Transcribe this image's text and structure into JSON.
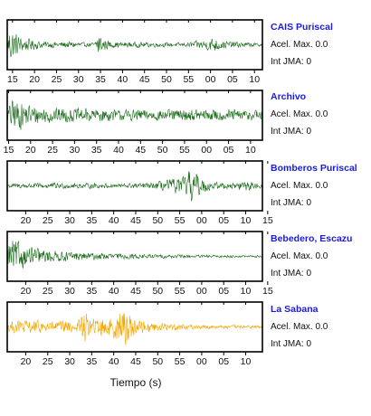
{
  "chart_data": {
    "type": "line",
    "xlabel": "Tiempo (s)",
    "stations": [
      {
        "name": "CAIS Puriscal",
        "acel_label": "Acel. Max. 0.0",
        "int_label": "Int JMA: 0",
        "color": "#1f6e1f",
        "ticks": [
          "15",
          "20",
          "25",
          "30",
          "35",
          "40",
          "45",
          "50",
          "55",
          "00",
          "05",
          "10"
        ],
        "tick_start": 1.2,
        "amplitude_envelope": [
          [
            0,
            0.2
          ],
          [
            0.5,
            0.95
          ],
          [
            1.5,
            0.75
          ],
          [
            3,
            0.4
          ],
          [
            5,
            0.3
          ],
          [
            8,
            0.18
          ],
          [
            12,
            0.15
          ],
          [
            15,
            0.18
          ],
          [
            18,
            0.1
          ],
          [
            20,
            0.12
          ],
          [
            20.7,
            0.9
          ],
          [
            21.5,
            0.35
          ],
          [
            24,
            0.15
          ],
          [
            35,
            0.12
          ],
          [
            40,
            0.1
          ],
          [
            45,
            0.25
          ],
          [
            47,
            0.4
          ],
          [
            49,
            0.2
          ],
          [
            53,
            0.15
          ],
          [
            57,
            0.08
          ],
          [
            58,
            0.08
          ]
        ]
      },
      {
        "name": "Archivo",
        "acel_label": "Acel. Max. 0.0",
        "int_label": "Int JMA: 0",
        "color": "#1f6e1f",
        "ticks": [
          "15",
          "20",
          "25",
          "30",
          "35",
          "40",
          "45",
          "50",
          "55",
          "00",
          "05",
          "10"
        ],
        "tick_start": 0.3,
        "amplitude_envelope": [
          [
            0,
            0.3
          ],
          [
            1,
            0.85
          ],
          [
            3,
            0.7
          ],
          [
            6,
            0.5
          ],
          [
            10,
            0.4
          ],
          [
            15,
            0.35
          ],
          [
            20,
            0.35
          ],
          [
            25,
            0.28
          ],
          [
            30,
            0.3
          ],
          [
            35,
            0.28
          ],
          [
            40,
            0.3
          ],
          [
            45,
            0.3
          ],
          [
            50,
            0.3
          ],
          [
            55,
            0.28
          ],
          [
            58,
            0.28
          ]
        ]
      },
      {
        "name": "Bomberos Puriscal",
        "acel_label": "Acel. Max. 0.0",
        "int_label": "Int JMA: 0",
        "color": "#1f6e1f",
        "ticks": [
          "20",
          "25",
          "30",
          "35",
          "40",
          "45",
          "50",
          "55",
          "00",
          "05",
          "10",
          "15"
        ],
        "tick_start": 4.2,
        "amplitude_envelope": [
          [
            0,
            0.12
          ],
          [
            10,
            0.15
          ],
          [
            25,
            0.12
          ],
          [
            33,
            0.15
          ],
          [
            36,
            0.3
          ],
          [
            40,
            0.45
          ],
          [
            42,
            0.95
          ],
          [
            44,
            0.4
          ],
          [
            47,
            0.2
          ],
          [
            52,
            0.15
          ],
          [
            54,
            0.35
          ],
          [
            56,
            0.15
          ],
          [
            58,
            0.12
          ]
        ]
      },
      {
        "name": "Bebedero, Escazu",
        "acel_label": "Acel. Max. 0.0",
        "int_label": "Int JMA: 0",
        "color": "#1f6e1f",
        "ticks": [
          "20",
          "25",
          "30",
          "35",
          "40",
          "45",
          "50",
          "55",
          "00",
          "05",
          "10",
          "15"
        ],
        "tick_start": 4.2,
        "amplitude_envelope": [
          [
            0,
            0.4
          ],
          [
            0.5,
            0.95
          ],
          [
            2,
            0.8
          ],
          [
            4,
            0.55
          ],
          [
            8,
            0.35
          ],
          [
            12,
            0.25
          ],
          [
            18,
            0.2
          ],
          [
            25,
            0.15
          ],
          [
            35,
            0.1
          ],
          [
            45,
            0.07
          ],
          [
            58,
            0.05
          ]
        ]
      },
      {
        "name": "La Sabana",
        "acel_label": "Acel. Max. 0.0",
        "int_label": "Int JMA: 0",
        "color": "#f5a500",
        "ticks": [
          "20",
          "25",
          "30",
          "35",
          "40",
          "45",
          "50",
          "55",
          "00",
          "05",
          "10"
        ],
        "tick_start": 4.2,
        "amplitude_envelope": [
          [
            0,
            0.3
          ],
          [
            3,
            0.35
          ],
          [
            8,
            0.3
          ],
          [
            16,
            0.3
          ],
          [
            17.5,
            0.95
          ],
          [
            19,
            0.4
          ],
          [
            24,
            0.55
          ],
          [
            26,
            0.9
          ],
          [
            27.5,
            0.95
          ],
          [
            29,
            0.4
          ],
          [
            33,
            0.25
          ],
          [
            36,
            0.2
          ],
          [
            40,
            0.15
          ],
          [
            45,
            0.1
          ],
          [
            58,
            0.08
          ]
        ]
      }
    ]
  }
}
